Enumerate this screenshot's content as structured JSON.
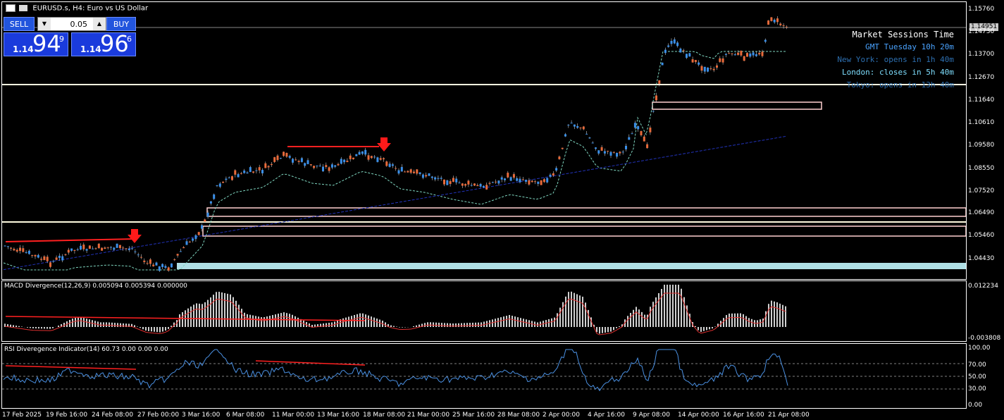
{
  "chart_title": "EURUSD.s, H4:  Euro vs US Dollar",
  "trade_panel": {
    "sell_label": "SELL",
    "buy_label": "BUY",
    "lot_value": "0.05",
    "sell_price_prefix": "1.14",
    "sell_price_big": "94",
    "sell_price_sup": "9",
    "buy_price_prefix": "1.14",
    "buy_price_big": "96",
    "buy_price_sup": "6"
  },
  "sessions": {
    "title": "Market Sessions Time",
    "gmt": "GMT Tuesday 10h 20m",
    "new_york": "New York: opens in 1h 40m",
    "london": "London: closes in 5h 40m",
    "tokyo": "Tokyo: opens in 13h 40m"
  },
  "current_price": "1.14951",
  "price_axis": [
    "1.15760",
    "1.14730",
    "1.13700",
    "1.12670",
    "1.11640",
    "1.10610",
    "1.09580",
    "1.08550",
    "1.07520",
    "1.06490",
    "1.05460",
    "1.04430"
  ],
  "macd": {
    "title": "MACD Divergence(12,26,9) 0.005094 0.005394 0.000000",
    "axis_top": "0.012234",
    "axis_bottom": "-0.003808"
  },
  "rsi": {
    "title": "RSI Diveregence Indicator(14) 60.73 0.00 0.00 0.00",
    "axis": [
      "100.00",
      "70.00",
      "50.00",
      "30.00",
      "0.00"
    ]
  },
  "time_axis": [
    "17 Feb 2025",
    "19 Feb 16:00",
    "24 Feb 08:00",
    "27 Feb 00:00",
    "3 Mar 16:00",
    "6 Mar 08:00",
    "11 Mar 00:00",
    "13 Mar 16:00",
    "18 Mar 08:00",
    "21 Mar 00:00",
    "25 Mar 16:00",
    "28 Mar 08:00",
    "2 Apr 00:00",
    "4 Apr 16:00",
    "9 Apr 08:00",
    "14 Apr 00:00",
    "16 Apr 16:00",
    "21 Apr 08:00"
  ],
  "colors": {
    "bull_candle": "#3a8fe8",
    "bear_candle": "#e86a3a",
    "divergence_line": "#ff2020",
    "zone_fill": "#b0e0e6",
    "macd_bars": "#d0d0d0",
    "rsi_line": "#4a90e2"
  }
}
